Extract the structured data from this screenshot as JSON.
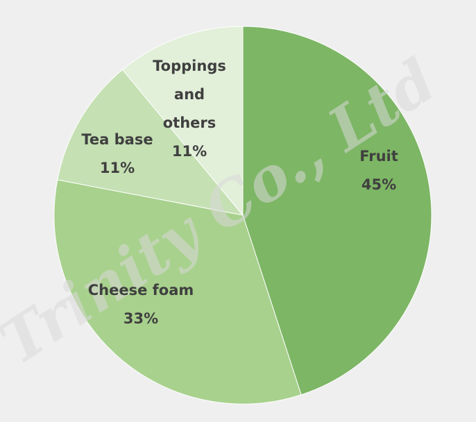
{
  "chart_data": {
    "type": "pie",
    "title": "",
    "start_angle_deg": 0,
    "direction": "clockwise",
    "slices": [
      {
        "label_lines": [
          "Fruit"
        ],
        "value": 45,
        "value_label": "45%",
        "color": "#7db665"
      },
      {
        "label_lines": [
          "Cheese foam"
        ],
        "value": 33,
        "value_label": "33%",
        "color": "#a8d18d"
      },
      {
        "label_lines": [
          "Tea base"
        ],
        "value": 11,
        "value_label": "11%",
        "color": "#c5e0b3"
      },
      {
        "label_lines": [
          "Toppings",
          "and",
          "others"
        ],
        "value": 11,
        "value_label": "11%",
        "color": "#e2efd9"
      }
    ]
  },
  "watermark": {
    "text": "Trinity Co., Ltd",
    "color": "#d9d9d9"
  }
}
